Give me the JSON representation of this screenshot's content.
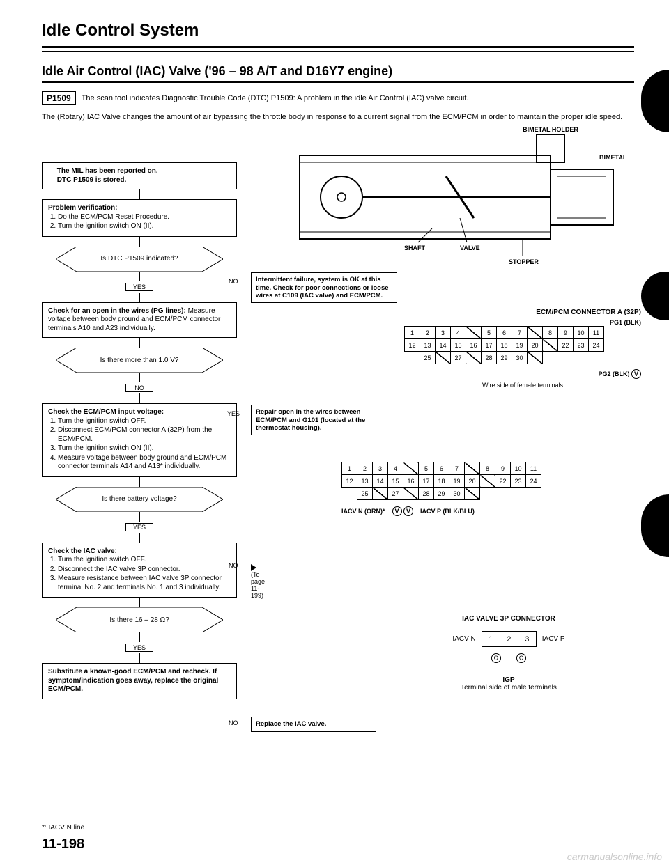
{
  "title": "Idle Control System",
  "subtitle": "Idle Air Control (IAC) Valve ('96 – 98 A/T and D16Y7 engine)",
  "dtc": {
    "code": "P1509",
    "text": "The scan tool indicates Diagnostic Trouble Code (DTC) P1509: A problem in the idle Air Control (IAC) valve circuit."
  },
  "intro": "The (Rotary) IAC Valve changes the amount of air bypassing the throttle body in response to a current signal from the ECM/PCM in order to maintain the proper idle speed.",
  "diagram_labels": {
    "bimetal_holder": "BIMETAL HOLDER",
    "bimetal": "BIMETAL",
    "shaft": "SHAFT",
    "valve": "VALVE",
    "stopper": "STOPPER"
  },
  "flow": {
    "start": {
      "l1": "— The MIL has been reported on.",
      "l2": "— DTC P1509 is stored."
    },
    "verify": {
      "head": "Problem verification:",
      "i1": "Do the ECM/PCM Reset Procedure.",
      "i2": "Turn the ignition switch ON (II)."
    },
    "d1": "Is DTC P1509 indicated?",
    "d1_no_box": "Intermittent failure, system is OK at this time. Check for poor connections or loose wires at C109 (IAC valve) and ECM/PCM.",
    "check_wires": {
      "head": "Check for an open in the wires (PG lines):",
      "body": "Measure voltage between body ground and ECM/PCM connector terminals A10 and A23 individually."
    },
    "d2": "Is there more than 1.0 V?",
    "d2_yes_box": "Repair open in the wires between ECM/PCM and G101 (located at the thermostat housing).",
    "check_input": {
      "head": "Check the ECM/PCM input voltage:",
      "i1": "Turn the ignition switch OFF.",
      "i2": "Disconnect ECM/PCM connector A (32P) from the ECM/PCM.",
      "i3": "Turn the ignition switch ON (II).",
      "i4": "Measure voltage between body ground and ECM/PCM connector terminals A14 and A13* individually."
    },
    "d3": "Is there battery voltage?",
    "d3_no_ref": "(To page 11-199)",
    "check_iac": {
      "head": "Check the IAC valve:",
      "i1": "Turn the ignition switch OFF.",
      "i2": "Disconnect the IAC valve 3P connector.",
      "i3": "Measure resistance between IAC valve 3P connector terminal No. 2 and terminals No. 1 and 3 individually."
    },
    "d4": "Is there 16 – 28 Ω?",
    "d4_no_box": "Replace the IAC valve.",
    "substitute": "Substitute a known-good ECM/PCM and recheck. If symptom/indication goes away, replace the original ECM/PCM."
  },
  "labels": {
    "yes": "YES",
    "no": "NO"
  },
  "connector_a": {
    "title": "ECM/PCM CONNECTOR A (32P)",
    "pg1": "PG1 (BLK)",
    "pg2": "PG2 (BLK)",
    "row1": [
      "1",
      "2",
      "3",
      "4",
      "",
      "5",
      "6",
      "7",
      "",
      "8",
      "9",
      "10",
      "11"
    ],
    "row2": [
      "12",
      "13",
      "14",
      "15",
      "16",
      "17",
      "18",
      "19",
      "20",
      "",
      "22",
      "23",
      "24"
    ],
    "row3": [
      "",
      "25",
      "",
      "27",
      "",
      "28",
      "29",
      "30",
      "",
      "",
      "",
      "",
      ""
    ],
    "caption": "Wire side of female terminals"
  },
  "connector_b": {
    "iacv_n": "IACV N (ORN)*",
    "iacv_p": "IACV P (BLK/BLU)",
    "row1": [
      "1",
      "2",
      "3",
      "4",
      "",
      "5",
      "6",
      "7",
      "",
      "8",
      "9",
      "10",
      "11"
    ],
    "row2": [
      "12",
      "13",
      "14",
      "15",
      "16",
      "17",
      "18",
      "19",
      "20",
      "",
      "22",
      "23",
      "24"
    ],
    "row3": [
      "",
      "25",
      "",
      "27",
      "",
      "28",
      "29",
      "30",
      "",
      "",
      "",
      "",
      ""
    ]
  },
  "iac_3p": {
    "title": "IAC VALVE 3P CONNECTOR",
    "left": "IACV N",
    "right": "IACV P",
    "pins": [
      "1",
      "2",
      "3"
    ],
    "igp": "IGP",
    "caption": "Terminal side of male terminals"
  },
  "footnote": "*: IACV N line",
  "page_num": "11-198",
  "watermark": "carmanualsonline.info"
}
